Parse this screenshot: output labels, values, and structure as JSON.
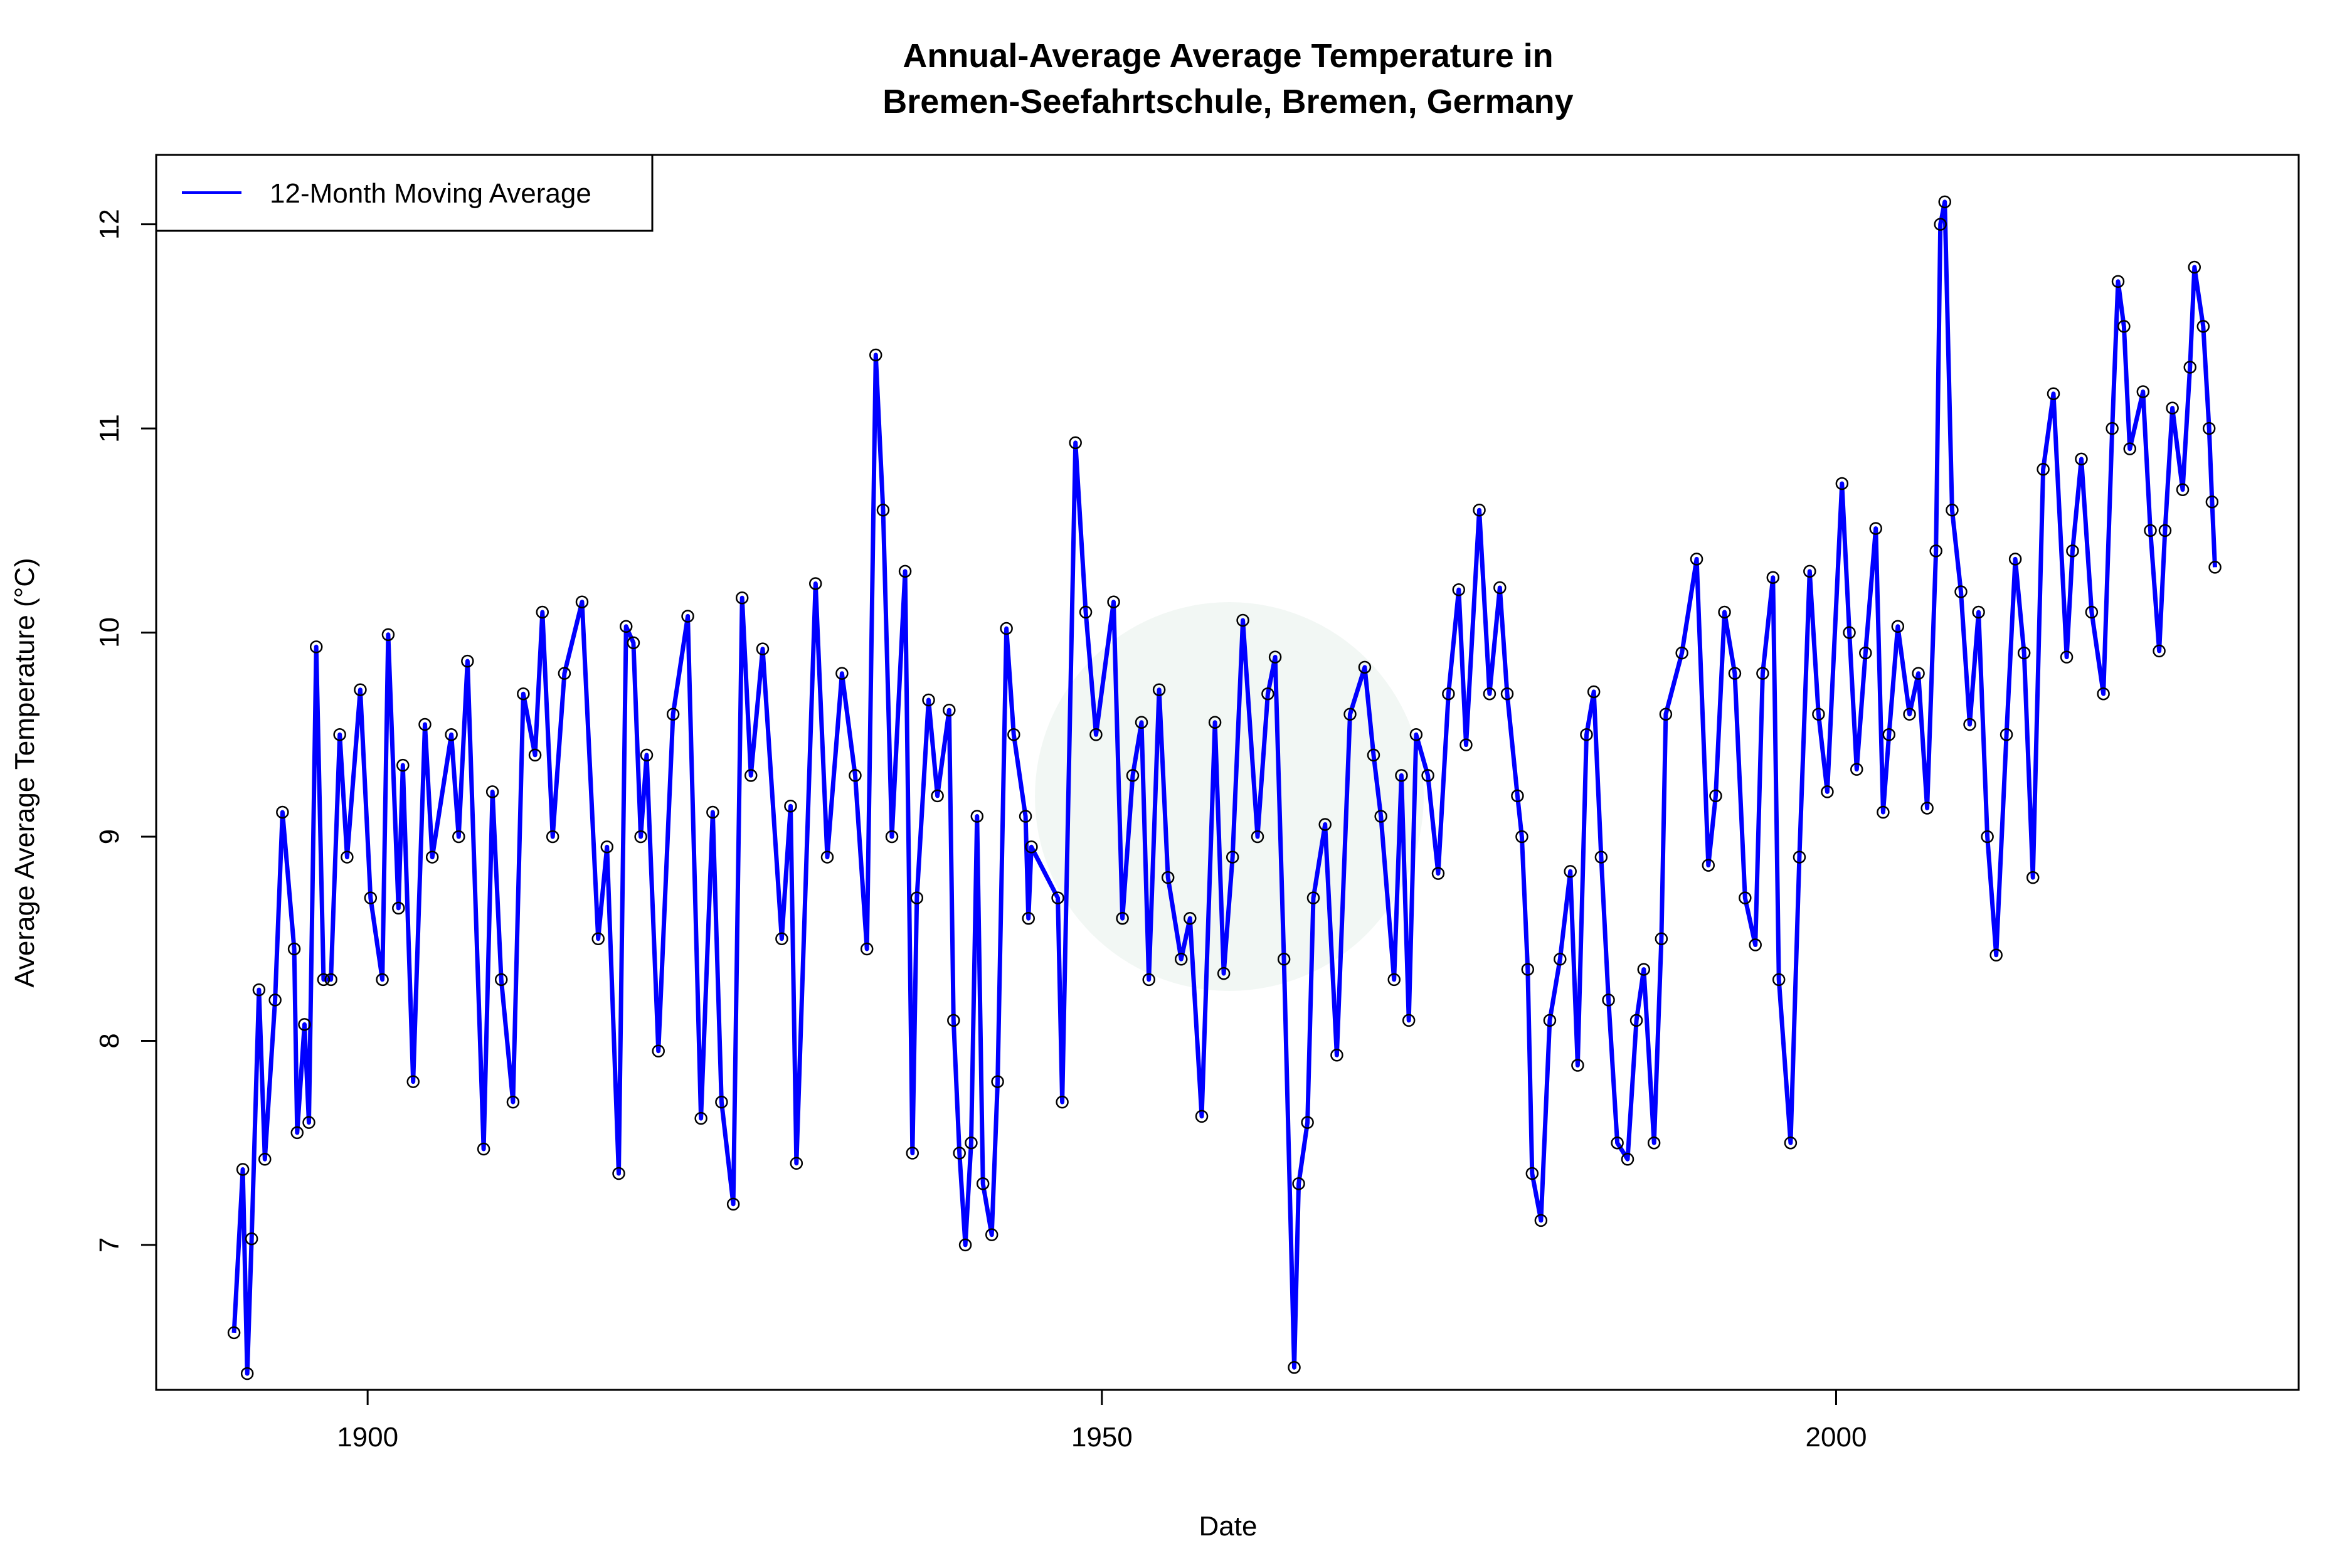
{
  "chart_data": {
    "type": "line",
    "title_line1": "Annual-Average Average Temperature in",
    "title_line2": "Bremen-Seefahrtschule, Bremen, Germany",
    "xlabel": "Date",
    "ylabel": "Average Average Temperature (°C)",
    "xlim": [
      1885.6,
      2031.5
    ],
    "ylim": [
      6.29,
      12.34
    ],
    "x_ticks": [
      1900,
      1950,
      2000
    ],
    "y_ticks": [
      7,
      8,
      9,
      10,
      11,
      12
    ],
    "grid": false,
    "legend": {
      "position": "top-left",
      "entries": [
        {
          "label": "12-Month Moving Average",
          "color": "#0000ff"
        }
      ]
    },
    "series": [
      {
        "name": "12-Month Moving Average",
        "color": "#0000ff",
        "marker": "open-circle",
        "points": [
          [
            1890.9,
            6.57
          ],
          [
            1891.5,
            7.37
          ],
          [
            1891.8,
            6.37
          ],
          [
            1892.1,
            7.03
          ],
          [
            1892.6,
            8.25
          ],
          [
            1893.0,
            7.42
          ],
          [
            1893.7,
            8.2
          ],
          [
            1894.2,
            9.12
          ],
          [
            1895.0,
            8.45
          ],
          [
            1895.2,
            7.55
          ],
          [
            1895.7,
            8.08
          ],
          [
            1896.0,
            7.6
          ],
          [
            1896.5,
            9.93
          ],
          [
            1897.0,
            8.3
          ],
          [
            1897.5,
            8.3
          ],
          [
            1898.1,
            9.5
          ],
          [
            1898.6,
            8.9
          ],
          [
            1899.5,
            9.72
          ],
          [
            1900.2,
            8.7
          ],
          [
            1901.0,
            8.3
          ],
          [
            1901.4,
            9.99
          ],
          [
            1902.1,
            8.65
          ],
          [
            1902.4,
            9.35
          ],
          [
            1903.1,
            7.8
          ],
          [
            1903.9,
            9.55
          ],
          [
            1904.4,
            8.9
          ],
          [
            1905.7,
            9.5
          ],
          [
            1906.2,
            9.0
          ],
          [
            1906.8,
            9.86
          ],
          [
            1907.9,
            7.47
          ],
          [
            1908.5,
            9.22
          ],
          [
            1909.1,
            8.3
          ],
          [
            1909.9,
            7.7
          ],
          [
            1910.6,
            9.7
          ],
          [
            1911.4,
            9.4
          ],
          [
            1911.9,
            10.1
          ],
          [
            1912.6,
            9.0
          ],
          [
            1913.4,
            9.8
          ],
          [
            1914.6,
            10.15
          ],
          [
            1915.7,
            8.5
          ],
          [
            1916.3,
            8.95
          ],
          [
            1917.1,
            7.35
          ],
          [
            1917.6,
            10.03
          ],
          [
            1918.1,
            9.95
          ],
          [
            1918.6,
            9.0
          ],
          [
            1919.0,
            9.4
          ],
          [
            1919.8,
            7.95
          ],
          [
            1920.8,
            9.6
          ],
          [
            1921.8,
            10.08
          ],
          [
            1922.7,
            7.62
          ],
          [
            1923.5,
            9.12
          ],
          [
            1924.1,
            7.7
          ],
          [
            1924.9,
            7.2
          ],
          [
            1925.5,
            10.17
          ],
          [
            1926.1,
            9.3
          ],
          [
            1926.9,
            9.92
          ],
          [
            1928.2,
            8.5
          ],
          [
            1928.8,
            9.15
          ],
          [
            1929.2,
            7.4
          ],
          [
            1930.5,
            10.24
          ],
          [
            1931.3,
            8.9
          ],
          [
            1932.3,
            9.8
          ],
          [
            1933.2,
            9.3
          ],
          [
            1934.0,
            8.45
          ],
          [
            1934.6,
            11.36
          ],
          [
            1935.1,
            10.6
          ],
          [
            1935.7,
            9.0
          ],
          [
            1936.6,
            10.3
          ],
          [
            1937.1,
            7.45
          ],
          [
            1937.4,
            8.7
          ],
          [
            1938.2,
            9.67
          ],
          [
            1938.8,
            9.2
          ],
          [
            1939.6,
            9.62
          ],
          [
            1939.9,
            8.1
          ],
          [
            1940.3,
            7.45
          ],
          [
            1940.7,
            7.0
          ],
          [
            1941.1,
            7.5
          ],
          [
            1941.5,
            9.1
          ],
          [
            1941.9,
            7.3
          ],
          [
            1942.5,
            7.05
          ],
          [
            1942.9,
            7.8
          ],
          [
            1943.5,
            10.02
          ],
          [
            1944.0,
            9.5
          ],
          [
            1944.8,
            9.1
          ],
          [
            1945.0,
            8.6
          ],
          [
            1945.2,
            8.95
          ],
          [
            1947.0,
            8.7
          ],
          [
            1947.3,
            7.7
          ],
          [
            1948.2,
            10.93
          ],
          [
            1948.9,
            10.1
          ],
          [
            1949.6,
            9.5
          ],
          [
            1950.8,
            10.15
          ],
          [
            1951.4,
            8.6
          ],
          [
            1952.1,
            9.3
          ],
          [
            1952.7,
            9.56
          ],
          [
            1953.2,
            8.3
          ],
          [
            1953.9,
            9.72
          ],
          [
            1954.5,
            8.8
          ],
          [
            1955.4,
            8.4
          ],
          [
            1956.0,
            8.6
          ],
          [
            1956.8,
            7.63
          ],
          [
            1957.7,
            9.56
          ],
          [
            1958.3,
            8.33
          ],
          [
            1958.9,
            8.9
          ],
          [
            1959.6,
            10.06
          ],
          [
            1960.6,
            9.0
          ],
          [
            1961.3,
            9.7
          ],
          [
            1961.8,
            9.88
          ],
          [
            1962.4,
            8.4
          ],
          [
            1963.1,
            6.4
          ],
          [
            1963.4,
            7.3
          ],
          [
            1964.0,
            7.6
          ],
          [
            1964.4,
            8.7
          ],
          [
            1965.2,
            9.06
          ],
          [
            1966.0,
            7.93
          ],
          [
            1966.9,
            9.6
          ],
          [
            1967.9,
            9.83
          ],
          [
            1968.5,
            9.4
          ],
          [
            1969.0,
            9.1
          ],
          [
            1969.9,
            8.3
          ],
          [
            1970.4,
            9.3
          ],
          [
            1970.9,
            8.1
          ],
          [
            1971.4,
            9.5
          ],
          [
            1972.2,
            9.3
          ],
          [
            1972.9,
            8.82
          ],
          [
            1973.6,
            9.7
          ],
          [
            1974.3,
            10.21
          ],
          [
            1974.8,
            9.45
          ],
          [
            1975.7,
            10.6
          ],
          [
            1976.4,
            9.7
          ],
          [
            1977.1,
            10.22
          ],
          [
            1977.6,
            9.7
          ],
          [
            1978.3,
            9.2
          ],
          [
            1978.6,
            9.0
          ],
          [
            1979.0,
            8.35
          ],
          [
            1979.3,
            7.35
          ],
          [
            1979.9,
            7.12
          ],
          [
            1980.5,
            8.1
          ],
          [
            1981.2,
            8.4
          ],
          [
            1981.9,
            8.83
          ],
          [
            1982.4,
            7.88
          ],
          [
            1983.0,
            9.5
          ],
          [
            1983.5,
            9.71
          ],
          [
            1984.0,
            8.9
          ],
          [
            1984.5,
            8.2
          ],
          [
            1985.1,
            7.5
          ],
          [
            1985.8,
            7.42
          ],
          [
            1986.4,
            8.1
          ],
          [
            1986.9,
            8.35
          ],
          [
            1987.6,
            7.5
          ],
          [
            1988.1,
            8.5
          ],
          [
            1988.4,
            9.6
          ],
          [
            1989.5,
            9.9
          ],
          [
            1990.5,
            10.36
          ],
          [
            1991.3,
            8.86
          ],
          [
            1991.8,
            9.2
          ],
          [
            1992.4,
            10.1
          ],
          [
            1993.1,
            9.8
          ],
          [
            1993.8,
            8.7
          ],
          [
            1994.5,
            8.47
          ],
          [
            1995.0,
            9.8
          ],
          [
            1995.7,
            10.27
          ],
          [
            1996.1,
            8.3
          ],
          [
            1996.9,
            7.5
          ],
          [
            1997.5,
            8.9
          ],
          [
            1998.2,
            10.3
          ],
          [
            1998.8,
            9.6
          ],
          [
            1999.4,
            9.22
          ],
          [
            2000.4,
            10.73
          ],
          [
            2000.9,
            10.0
          ],
          [
            2001.4,
            9.33
          ],
          [
            2002.0,
            9.9
          ],
          [
            2002.7,
            10.51
          ],
          [
            2003.2,
            9.12
          ],
          [
            2003.6,
            9.5
          ],
          [
            2004.2,
            10.03
          ],
          [
            2005.0,
            9.6
          ],
          [
            2005.6,
            9.8
          ],
          [
            2006.2,
            9.14
          ],
          [
            2006.8,
            10.4
          ],
          [
            2007.1,
            12.0
          ],
          [
            2007.4,
            12.11
          ],
          [
            2007.9,
            10.6
          ],
          [
            2008.5,
            10.2
          ],
          [
            2009.1,
            9.55
          ],
          [
            2009.7,
            10.1
          ],
          [
            2010.3,
            9.0
          ],
          [
            2010.9,
            8.42
          ],
          [
            2011.6,
            9.5
          ],
          [
            2012.2,
            10.36
          ],
          [
            2012.8,
            9.9
          ],
          [
            2013.4,
            8.8
          ],
          [
            2014.1,
            10.8
          ],
          [
            2014.8,
            11.17
          ],
          [
            2015.7,
            9.88
          ],
          [
            2016.1,
            10.4
          ],
          [
            2016.7,
            10.85
          ],
          [
            2017.4,
            10.1
          ],
          [
            2018.2,
            9.7
          ],
          [
            2018.8,
            11.0
          ],
          [
            2019.2,
            11.72
          ],
          [
            2019.6,
            11.5
          ],
          [
            2020.0,
            10.9
          ],
          [
            2020.9,
            11.18
          ],
          [
            2021.4,
            10.5
          ],
          [
            2022.0,
            9.91
          ],
          [
            2022.4,
            10.5
          ],
          [
            2022.9,
            11.1
          ],
          [
            2023.6,
            10.7
          ],
          [
            2024.1,
            11.3
          ],
          [
            2024.4,
            11.79
          ],
          [
            2025.0,
            11.5
          ],
          [
            2025.4,
            11.0
          ],
          [
            2025.6,
            10.64
          ],
          [
            2025.8,
            10.32
          ]
        ]
      }
    ]
  }
}
